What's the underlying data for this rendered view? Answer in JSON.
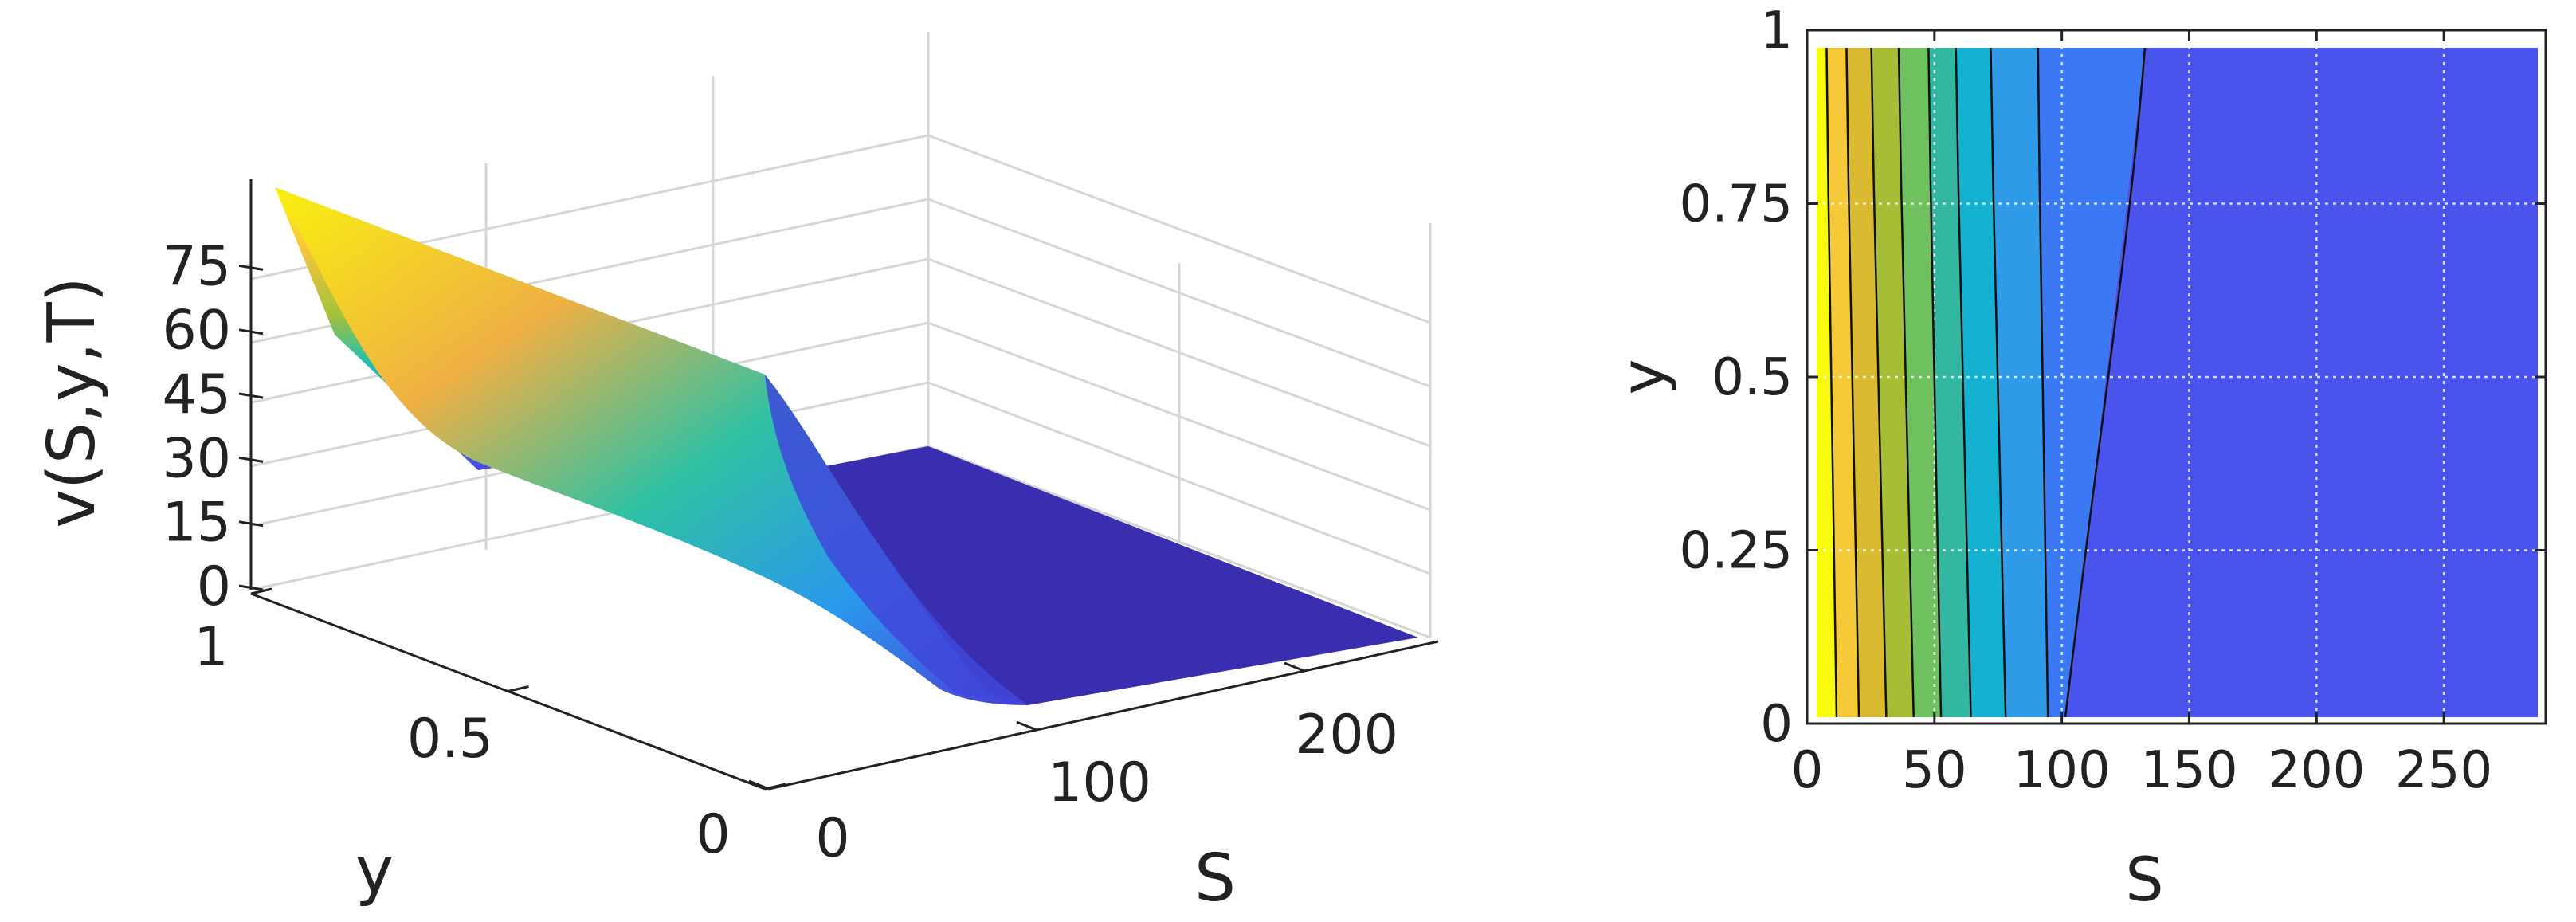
{
  "chart_data": [
    {
      "type": "surface",
      "colormap": "parula",
      "xlabel": "S",
      "ylabel": "y",
      "zlabel": "v(S,y,T)",
      "xlim": [
        0,
        250
      ],
      "ylim": [
        0,
        1
      ],
      "zlim": [
        0,
        90
      ],
      "xticks": [
        0,
        100,
        200
      ],
      "yticks": [
        0,
        0.5,
        1
      ],
      "zticks": [
        0,
        15,
        30,
        45,
        60,
        75
      ],
      "grid": true,
      "description_values": {
        "v_at_S0_y1": 90,
        "v_at_S100_y0": 0,
        "flat_region_S_min": 110
      }
    },
    {
      "type": "contour",
      "colormap": "parula",
      "xlabel": "S",
      "ylabel": "y",
      "xlim": [
        0,
        290
      ],
      "ylim": [
        0,
        1
      ],
      "xticks": [
        0,
        50,
        100,
        150,
        200,
        250
      ],
      "yticks": [
        0,
        0.25,
        0.5,
        0.75,
        1
      ],
      "grid": true,
      "contour_lines": [
        {
          "S_at_y0": 8,
          "S_at_y1": 4
        },
        {
          "S_at_y0": 17,
          "S_at_y1": 12
        },
        {
          "S_at_y0": 28,
          "S_at_y1": 22
        },
        {
          "S_at_y0": 39,
          "S_at_y1": 33
        },
        {
          "S_at_y0": 50,
          "S_at_y1": 45
        },
        {
          "S_at_y0": 62,
          "S_at_y1": 56
        },
        {
          "S_at_y0": 76,
          "S_at_y1": 70
        },
        {
          "S_at_y0": 93,
          "S_at_y1": 89
        },
        {
          "S_at_y0": 100,
          "S_at_y1": 132
        }
      ],
      "band_colors": [
        "#F9FB0E",
        "#F5C938",
        "#D9BA31",
        "#A6BE36",
        "#6FC05E",
        "#33B7A0",
        "#14B1D0",
        "#2E9AE8",
        "#3A78F4",
        "#4A54EC",
        "#3F2AAA"
      ]
    }
  ]
}
